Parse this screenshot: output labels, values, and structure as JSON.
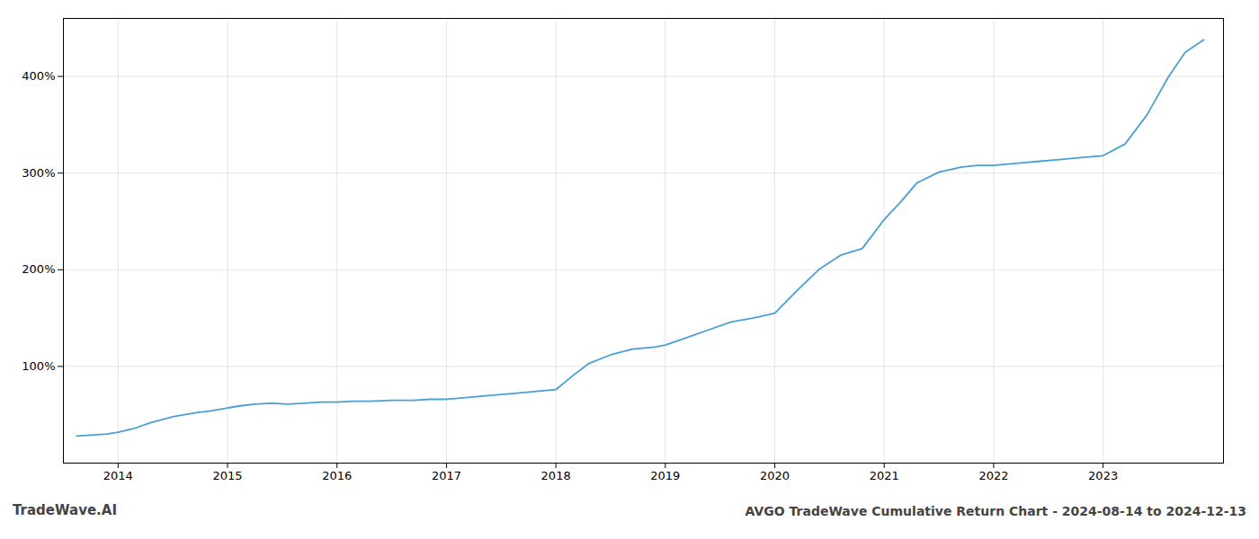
{
  "chart_data": {
    "type": "line",
    "title": "AVGO TradeWave Cumulative Return Chart - 2024-08-14 to 2024-12-13",
    "annotations": [
      "TradeWave.AI"
    ],
    "color": "#4a9fd4",
    "grid": true,
    "x": [
      2013.62,
      2013.75,
      2013.9,
      2014.0,
      2014.15,
      2014.3,
      2014.5,
      2014.7,
      2014.85,
      2015.0,
      2015.1,
      2015.25,
      2015.4,
      2015.55,
      2015.7,
      2015.85,
      2016.0,
      2016.15,
      2016.3,
      2016.5,
      2016.7,
      2016.85,
      2017.0,
      2017.2,
      2017.4,
      2017.6,
      2017.8,
      2018.0,
      2018.15,
      2018.3,
      2018.5,
      2018.7,
      2018.9,
      2019.0,
      2019.2,
      2019.4,
      2019.6,
      2019.8,
      2020.0,
      2020.2,
      2020.4,
      2020.6,
      2020.8,
      2021.0,
      2021.15,
      2021.3,
      2021.5,
      2021.7,
      2021.85,
      2022.0,
      2022.2,
      2022.4,
      2022.6,
      2022.8,
      2023.0,
      2023.2,
      2023.4,
      2023.6,
      2023.75,
      2023.92
    ],
    "values": [
      28,
      29,
      30,
      32,
      36,
      42,
      48,
      52,
      54,
      57,
      59,
      61,
      62,
      61,
      62,
      63,
      63,
      64,
      64,
      65,
      65,
      66,
      66,
      68,
      70,
      72,
      74,
      76,
      90,
      103,
      112,
      118,
      120,
      122,
      130,
      138,
      146,
      150,
      155,
      178,
      200,
      215,
      222,
      252,
      270,
      290,
      301,
      306,
      308,
      308,
      310,
      312,
      314,
      316,
      318,
      330,
      360,
      400,
      425,
      438
    ],
    "xlim": [
      2013.5,
      2024.1
    ],
    "xticks": [
      2014,
      2015,
      2016,
      2017,
      2018,
      2019,
      2020,
      2021,
      2022,
      2023
    ],
    "ylim": [
      0,
      460
    ],
    "yticks": [
      {
        "value": 100,
        "label": "100%"
      },
      {
        "value": 200,
        "label": "200%"
      },
      {
        "value": 300,
        "label": "300%"
      },
      {
        "value": 400,
        "label": "400%"
      }
    ]
  }
}
